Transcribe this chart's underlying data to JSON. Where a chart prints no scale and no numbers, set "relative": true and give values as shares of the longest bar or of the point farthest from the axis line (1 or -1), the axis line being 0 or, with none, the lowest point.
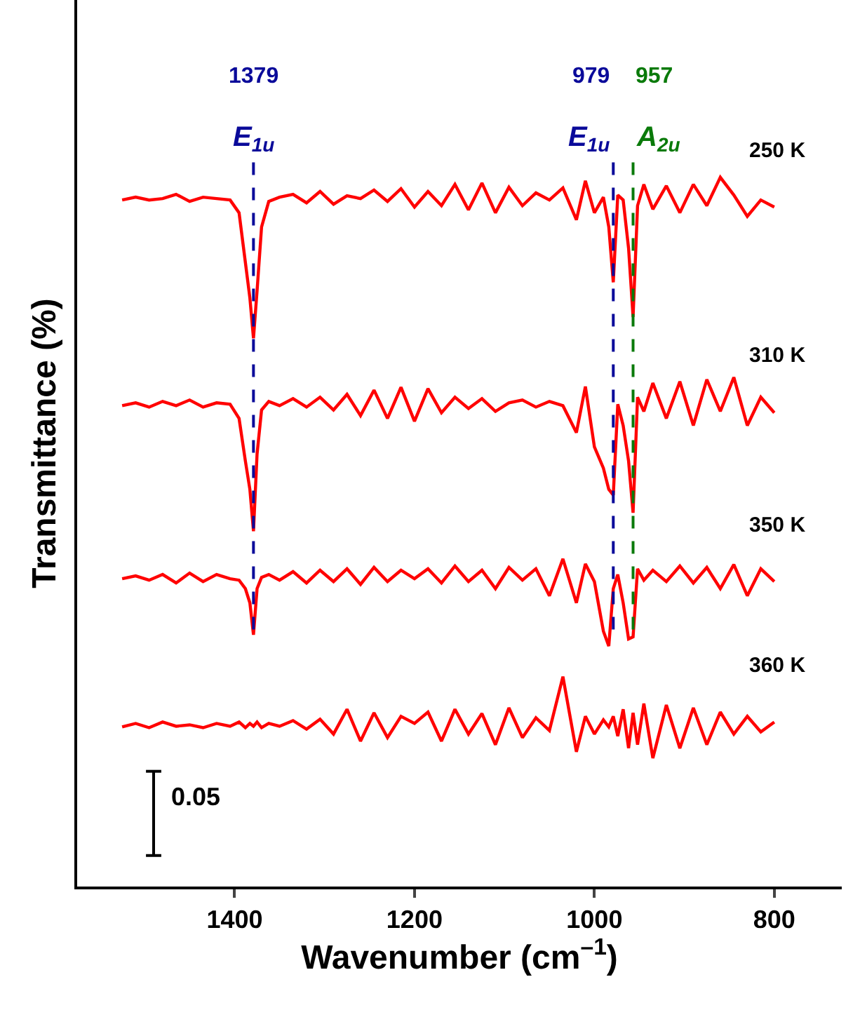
{
  "chart_data": {
    "type": "line",
    "relative": true,
    "xlabel": "Wavenumber (cm$^{–1}$)",
    "ylabel": "Transmittance (%)",
    "xlim": [
      1575,
      725
    ],
    "xticks": [
      1400,
      1200,
      1000,
      800
    ],
    "tick_labels": "x",
    "marker": "none",
    "line_style": "solid",
    "x": [
      1525,
      1510,
      1495,
      1480,
      1465,
      1450,
      1435,
      1420,
      1405,
      1395,
      1388,
      1383,
      1379,
      1375,
      1370,
      1362,
      1350,
      1335,
      1320,
      1305,
      1290,
      1275,
      1260,
      1245,
      1230,
      1215,
      1200,
      1185,
      1170,
      1155,
      1140,
      1125,
      1110,
      1095,
      1080,
      1065,
      1050,
      1035,
      1020,
      1010,
      1000,
      990,
      984,
      979,
      974,
      968,
      962,
      957,
      952,
      945,
      935,
      920,
      905,
      890,
      875,
      860,
      845,
      830,
      815,
      800
    ],
    "series": [
      {
        "name": "250 K",
        "color": "#ff0000",
        "values": [
          0.968,
          0.972,
          0.968,
          0.97,
          0.976,
          0.966,
          0.972,
          0.97,
          0.968,
          0.95,
          0.88,
          0.83,
          0.773,
          0.84,
          0.93,
          0.966,
          0.972,
          0.976,
          0.964,
          0.98,
          0.962,
          0.974,
          0.97,
          0.982,
          0.966,
          0.984,
          0.958,
          0.98,
          0.96,
          0.99,
          0.954,
          0.992,
          0.95,
          0.986,
          0.96,
          0.978,
          0.968,
          0.985,
          0.94,
          0.995,
          0.95,
          0.972,
          0.93,
          0.852,
          0.975,
          0.968,
          0.9,
          0.803,
          0.96,
          0.99,
          0.955,
          0.988,
          0.95,
          0.99,
          0.96,
          1.0,
          0.975,
          0.945,
          0.968,
          0.958
        ]
      },
      {
        "name": "310 K",
        "color": "#ff0000",
        "values": [
          0.678,
          0.682,
          0.676,
          0.684,
          0.678,
          0.686,
          0.676,
          0.682,
          0.68,
          0.66,
          0.6,
          0.56,
          0.501,
          0.61,
          0.672,
          0.684,
          0.678,
          0.688,
          0.676,
          0.69,
          0.672,
          0.694,
          0.664,
          0.7,
          0.66,
          0.704,
          0.656,
          0.702,
          0.668,
          0.69,
          0.674,
          0.688,
          0.67,
          0.682,
          0.686,
          0.676,
          0.684,
          0.678,
          0.64,
          0.705,
          0.62,
          0.59,
          0.56,
          0.552,
          0.68,
          0.65,
          0.6,
          0.527,
          0.69,
          0.67,
          0.71,
          0.66,
          0.712,
          0.65,
          0.715,
          0.67,
          0.718,
          0.65,
          0.69,
          0.668
        ]
      },
      {
        "name": "350 K",
        "color": "#ff0000",
        "values": [
          0.434,
          0.438,
          0.432,
          0.44,
          0.428,
          0.442,
          0.43,
          0.44,
          0.434,
          0.432,
          0.42,
          0.4,
          0.355,
          0.42,
          0.436,
          0.44,
          0.432,
          0.444,
          0.428,
          0.446,
          0.43,
          0.448,
          0.426,
          0.45,
          0.43,
          0.446,
          0.434,
          0.448,
          0.428,
          0.452,
          0.43,
          0.446,
          0.42,
          0.45,
          0.432,
          0.448,
          0.41,
          0.462,
          0.4,
          0.455,
          0.43,
          0.36,
          0.339,
          0.42,
          0.44,
          0.4,
          0.349,
          0.352,
          0.448,
          0.432,
          0.446,
          0.43,
          0.452,
          0.428,
          0.45,
          0.42,
          0.454,
          0.41,
          0.448,
          0.43
        ]
      },
      {
        "name": "360 K",
        "color": "#ff0000",
        "values": [
          0.225,
          0.23,
          0.224,
          0.232,
          0.226,
          0.228,
          0.224,
          0.23,
          0.226,
          0.232,
          0.224,
          0.23,
          0.226,
          0.232,
          0.224,
          0.23,
          0.226,
          0.234,
          0.222,
          0.236,
          0.215,
          0.25,
          0.205,
          0.245,
          0.21,
          0.24,
          0.23,
          0.246,
          0.205,
          0.25,
          0.215,
          0.244,
          0.2,
          0.252,
          0.21,
          0.238,
          0.22,
          0.296,
          0.19,
          0.24,
          0.215,
          0.235,
          0.225,
          0.24,
          0.212,
          0.25,
          0.195,
          0.245,
          0.2,
          0.258,
          0.181,
          0.256,
          0.195,
          0.252,
          0.2,
          0.246,
          0.215,
          0.24,
          0.218,
          0.232
        ]
      }
    ],
    "ref_lines": [
      {
        "axis": "x",
        "value": 1379,
        "label": "1379",
        "color": "#0a0a9a",
        "line_style": "dashed"
      },
      {
        "axis": "x",
        "value": 979,
        "label": "979",
        "color": "#0a0a9a",
        "line_style": "dashed"
      },
      {
        "axis": "x",
        "value": 957,
        "label": "957",
        "color": "#0a7a0a",
        "line_style": "dashed"
      }
    ],
    "annotations": [
      "E$_{1u}$",
      "E$_{1u}$",
      "A$_{2u}$",
      "0.05"
    ]
  }
}
